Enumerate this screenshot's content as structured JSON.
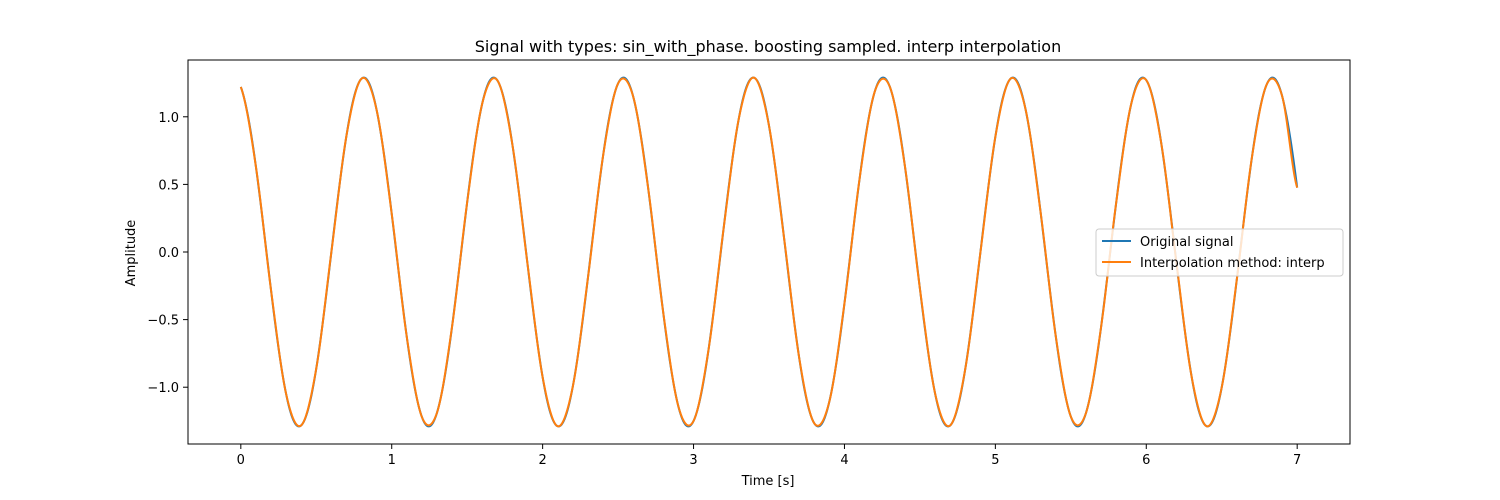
{
  "chart_data": {
    "type": "line",
    "title": "Signal with types: sin_with_phase. boosting sampled. interp interpolation",
    "xlabel": "Time [s]",
    "ylabel": "Amplitude",
    "xlim": [
      -0.35,
      7.35
    ],
    "ylim": [
      -1.42,
      1.42
    ],
    "xticks": [
      0,
      1,
      2,
      3,
      4,
      5,
      6,
      7
    ],
    "xtick_labels": [
      "0",
      "1",
      "2",
      "3",
      "4",
      "5",
      "6",
      "7"
    ],
    "yticks": [
      -1.0,
      -0.5,
      0.0,
      0.5,
      1.0
    ],
    "ytick_labels": [
      "−1.0",
      "−0.5",
      "0.0",
      "0.5",
      "1.0"
    ],
    "grid": false,
    "legend_position": "center-right",
    "signal": {
      "amplitude": 1.29,
      "frequency_hz": 1.1625,
      "phase_rad": 1.9,
      "duration_s": 7.0
    },
    "series": [
      {
        "name": "Original signal",
        "color": "#1f77b4",
        "kind": "continuous"
      },
      {
        "name": "Interpolation method: interp",
        "color": "#ff7f0e",
        "kind": "interpolated",
        "sample_step_s": 0.1
      }
    ]
  }
}
